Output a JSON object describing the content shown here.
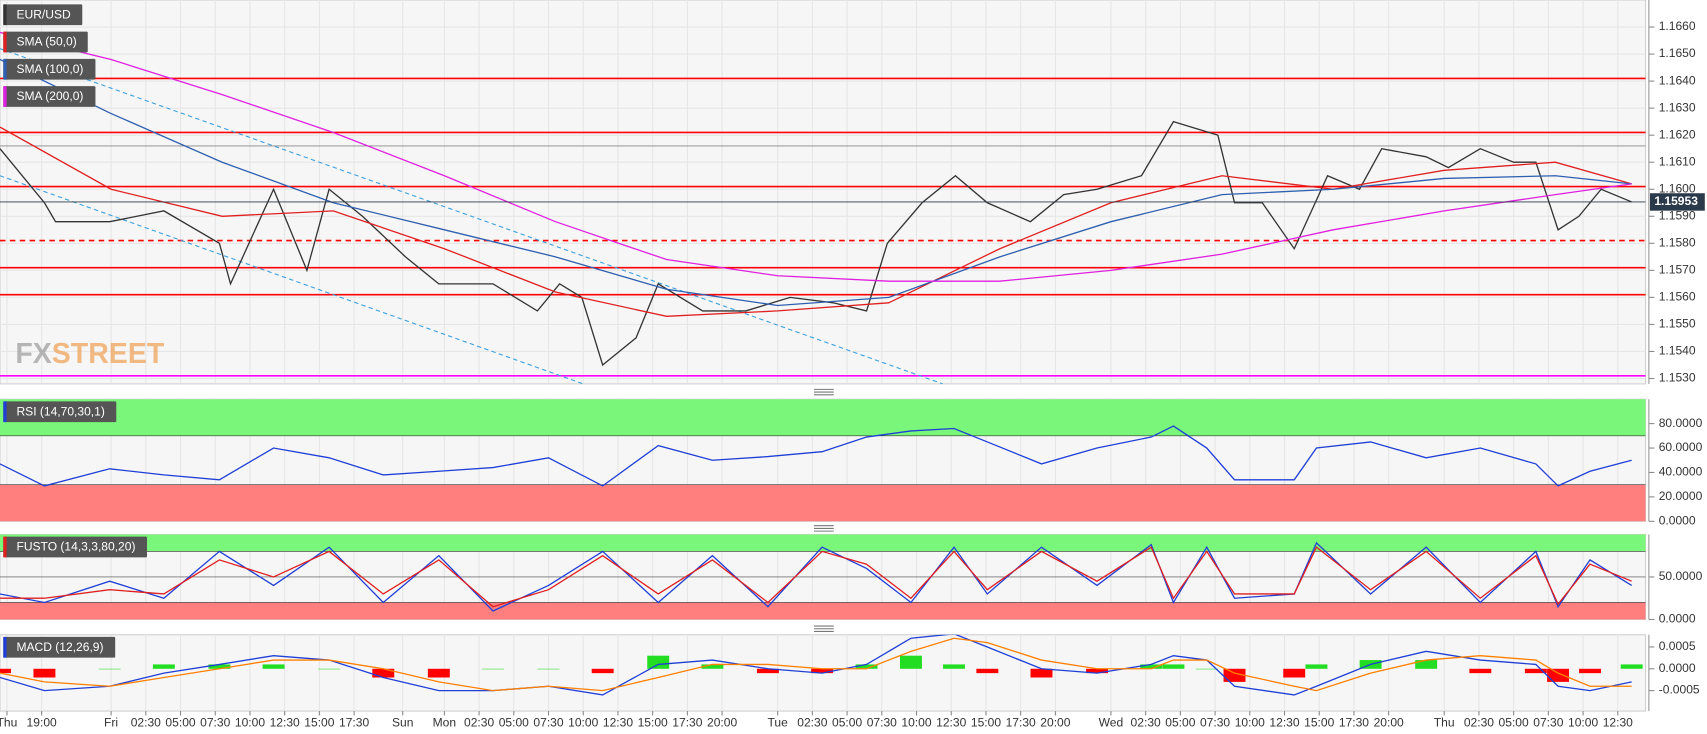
{
  "chart_data": [
    {
      "type": "line",
      "xlim": [
        0,
        118.5
      ],
      "ylim": [
        1.1528,
        1.167
      ],
      "grid": true,
      "yticks": [
        {
          "value": 1.153,
          "label": "1.1530"
        },
        {
          "value": 1.154,
          "label": "1.1540"
        },
        {
          "value": 1.155,
          "label": "1.1550"
        },
        {
          "value": 1.156,
          "label": "1.1560"
        },
        {
          "value": 1.157,
          "label": "1.1570"
        },
        {
          "value": 1.158,
          "label": "1.1580"
        },
        {
          "value": 1.159,
          "label": "1.1590"
        },
        {
          "value": 1.16,
          "label": "1.1600"
        },
        {
          "value": 1.161,
          "label": "1.1610"
        },
        {
          "value": 1.162,
          "label": "1.1620"
        },
        {
          "value": 1.163,
          "label": "1.1630"
        },
        {
          "value": 1.164,
          "label": "1.1640"
        },
        {
          "value": 1.165,
          "label": "1.1650"
        },
        {
          "value": 1.166,
          "label": "1.1660"
        }
      ],
      "series": [
        {
          "name": "EUR/USD",
          "color": "#333333",
          "x": [
            0,
            3.2,
            4,
            7.9,
            11.8,
            15.8,
            16.6,
            19.7,
            22.1,
            23.7,
            26.1,
            29.2,
            31.6,
            35.5,
            38.7,
            40.3,
            41.9,
            43.4,
            45.8,
            47.4,
            50.6,
            53.7,
            56.9,
            60,
            62.4,
            63.9,
            66.4,
            68.8,
            71.1,
            74.2,
            76.6,
            79,
            82.2,
            84.5,
            87.7,
            88.9,
            90.9,
            93.2,
            95.6,
            97.9,
            99.5,
            102.7,
            104.3,
            106.6,
            109,
            110.6,
            112.2,
            113.7,
            115.3,
            117.5
          ],
          "values": [
            1.1615,
            1.1595,
            1.1588,
            1.1588,
            1.1592,
            1.158,
            1.1565,
            1.16,
            1.157,
            1.16,
            1.159,
            1.1575,
            1.1565,
            1.1565,
            1.1555,
            1.1565,
            1.156,
            1.1535,
            1.1545,
            1.1565,
            1.1555,
            1.1555,
            1.156,
            1.1558,
            1.1555,
            1.158,
            1.1595,
            1.1605,
            1.1595,
            1.1588,
            1.1598,
            1.16,
            1.1605,
            1.1625,
            1.162,
            1.1595,
            1.1595,
            1.1578,
            1.1605,
            1.16,
            1.1615,
            1.1612,
            1.1608,
            1.1615,
            1.161,
            1.161,
            1.1585,
            1.159,
            1.16,
            1.15953
          ]
        },
        {
          "name": "SMA (50,0)",
          "color": "#e02020",
          "x": [
            0,
            8,
            16,
            24,
            32,
            40,
            48,
            56,
            64,
            72,
            80,
            88,
            96,
            104,
            112,
            117.5
          ],
          "values": [
            1.1623,
            1.16,
            1.159,
            1.1592,
            1.1578,
            1.1562,
            1.1553,
            1.1555,
            1.1558,
            1.1578,
            1.1595,
            1.1605,
            1.16,
            1.1607,
            1.161,
            1.1602
          ]
        },
        {
          "name": "SMA (100,0)",
          "color": "#2e5fb0",
          "x": [
            0,
            8,
            16,
            24,
            32,
            40,
            48,
            56,
            64,
            72,
            80,
            88,
            96,
            104,
            112,
            117.5
          ],
          "values": [
            1.1648,
            1.1628,
            1.161,
            1.1595,
            1.1585,
            1.1575,
            1.1563,
            1.1557,
            1.156,
            1.1575,
            1.1588,
            1.1598,
            1.16,
            1.1604,
            1.1605,
            1.1602
          ]
        },
        {
          "name": "SMA (200,0)",
          "color": "#e020e0",
          "x": [
            0,
            8,
            16,
            24,
            32,
            40,
            48,
            56,
            64,
            72,
            80,
            88,
            96,
            104,
            112,
            117.5
          ],
          "values": [
            1.1658,
            1.1648,
            1.1635,
            1.1621,
            1.1605,
            1.1588,
            1.1574,
            1.1568,
            1.1566,
            1.1566,
            1.157,
            1.1576,
            1.1585,
            1.1592,
            1.1598,
            1.1602
          ]
        }
      ],
      "levels": [
        {
          "value": 1.1641,
          "color": "#ff0000",
          "style": "solid"
        },
        {
          "value": 1.1621,
          "color": "#ff0000",
          "style": "solid"
        },
        {
          "value": 1.1601,
          "color": "#ff0000",
          "style": "solid"
        },
        {
          "value": 1.1581,
          "color": "#ff0000",
          "style": "dashed"
        },
        {
          "value": 1.1571,
          "color": "#ff0000",
          "style": "solid"
        },
        {
          "value": 1.1561,
          "color": "#ff0000",
          "style": "solid"
        },
        {
          "value": 1.1531,
          "color": "#ff00ff",
          "style": "solid"
        },
        {
          "value": 1.1616,
          "color": "#888888",
          "style": "thin"
        }
      ],
      "trendlines": [
        {
          "x": [
            0,
            67.9
          ],
          "values": [
            1.1652,
            1.1528
          ],
          "color": "#3aa0e0"
        },
        {
          "x": [
            0,
            42
          ],
          "values": [
            1.1605,
            1.1528
          ],
          "color": "#3aa0e0"
        }
      ],
      "last_price": 1.15953,
      "watermark": [
        "FX",
        "STREET"
      ]
    },
    {
      "type": "line",
      "xlim": [
        0,
        118.5
      ],
      "ylim": [
        0,
        100
      ],
      "yticks": [
        {
          "value": 0,
          "label": "0.0000"
        },
        {
          "value": 20,
          "label": "20.0000"
        },
        {
          "value": 40,
          "label": "40.0000"
        },
        {
          "value": 60,
          "label": "60.0000"
        },
        {
          "value": 80,
          "label": "80.0000"
        }
      ],
      "bands": [
        {
          "from": 70,
          "to": 100,
          "color": "#7af77a"
        },
        {
          "from": 0,
          "to": 30,
          "color": "#ff7f7f"
        }
      ],
      "x": [
        0,
        3.2,
        7.9,
        11.8,
        15.8,
        19.7,
        23.7,
        27.6,
        31.6,
        35.5,
        39.5,
        43.4,
        47.4,
        51.3,
        55.3,
        59.2,
        62.4,
        65.6,
        68.7,
        71.1,
        75,
        79,
        82.9,
        84.5,
        86.9,
        88.9,
        93.2,
        94.8,
        98.7,
        102.7,
        106.6,
        110.6,
        112.2,
        114.5,
        117.5
      ],
      "series": [
        {
          "name": "RSI (14,70,30,1)",
          "color": "#1f3fd6",
          "values": [
            47,
            29,
            43,
            38,
            34,
            60,
            52,
            38,
            41,
            44,
            52,
            29,
            62,
            50,
            53,
            57,
            69,
            74,
            76,
            65,
            47,
            60,
            69,
            78,
            60,
            34,
            34,
            60,
            65,
            52,
            60,
            47,
            29,
            41,
            50
          ]
        }
      ]
    },
    {
      "type": "line",
      "title": "FUSTO (14,3,3,80,20)",
      "xlim": [
        0,
        118.5
      ],
      "ylim": [
        0,
        100
      ],
      "yticks": [
        {
          "value": 0,
          "label": "0.0000"
        },
        {
          "value": 50,
          "label": "50.0000"
        }
      ],
      "bands": [
        {
          "from": 80,
          "to": 100,
          "color": "#7af77a"
        },
        {
          "from": 0,
          "to": 20,
          "color": "#ff7f7f"
        }
      ],
      "x": [
        0,
        3.2,
        7.9,
        11.8,
        15.8,
        19.7,
        23.7,
        27.6,
        31.6,
        35.5,
        39.5,
        43.4,
        47.4,
        51.3,
        55.3,
        59.2,
        62.4,
        65.6,
        68.7,
        71.1,
        75,
        79,
        82.9,
        84.5,
        86.9,
        88.9,
        93.2,
        94.8,
        98.7,
        102.7,
        106.6,
        110.6,
        112.2,
        114.5,
        117.5
      ],
      "series": [
        {
          "color": "#1f3fd6",
          "values": [
            30,
            20,
            45,
            25,
            80,
            40,
            85,
            20,
            75,
            10,
            40,
            80,
            20,
            75,
            15,
            85,
            60,
            20,
            85,
            30,
            85,
            40,
            88,
            20,
            85,
            25,
            30,
            90,
            30,
            85,
            20,
            80,
            15,
            70,
            40
          ]
        },
        {
          "color": "#e02020",
          "values": [
            25,
            25,
            35,
            30,
            70,
            50,
            80,
            30,
            70,
            15,
            35,
            75,
            30,
            70,
            20,
            80,
            65,
            25,
            80,
            35,
            80,
            45,
            85,
            25,
            80,
            30,
            30,
            85,
            35,
            80,
            25,
            75,
            18,
            65,
            45
          ]
        }
      ]
    },
    {
      "type": "bar",
      "title": "MACD (12,26,9)",
      "xlim": [
        0,
        118.5
      ],
      "ylim": [
        -0.00097,
        0.00078
      ],
      "yticks": [
        {
          "value": -0.0005,
          "label": "-0.0005"
        },
        {
          "value": 0,
          "label": "0.0000"
        },
        {
          "value": 0.0005,
          "label": "0.0005"
        }
      ],
      "x": [
        0,
        3.2,
        7.9,
        11.8,
        15.8,
        19.7,
        23.7,
        27.6,
        31.6,
        35.5,
        39.5,
        43.4,
        47.4,
        51.3,
        55.3,
        59.2,
        62.4,
        65.6,
        68.7,
        71.1,
        75,
        79,
        82.9,
        84.5,
        86.9,
        88.9,
        93.2,
        94.8,
        98.7,
        102.7,
        106.6,
        110.6,
        112.2,
        114.5,
        117.5
      ],
      "histogram": [
        -0.0001,
        -0.0002,
        0,
        0.0001,
        0.0001,
        0.0001,
        0,
        -0.0002,
        -0.0002,
        0,
        0,
        -0.0001,
        0.0003,
        0.0001,
        -0.0001,
        -0.0001,
        0.0001,
        0.0003,
        0.0001,
        -0.0001,
        -0.0002,
        -0.0001,
        0.0001,
        0.0001,
        0,
        -0.0003,
        -0.0002,
        0.0001,
        0.0002,
        0.0002,
        -0.0001,
        -0.0001,
        -0.0003,
        -0.0001,
        0.0001
      ],
      "up_color": "#22dd22",
      "down_color": "#ff0000",
      "series": [
        {
          "color": "#1f3fd6",
          "values": [
            -0.0002,
            -0.0005,
            -0.0004,
            -0.0001,
            0.0001,
            0.0003,
            0.0002,
            -0.0002,
            -0.0005,
            -0.0005,
            -0.0004,
            -0.0006,
            0.0001,
            0.0002,
            0,
            -0.0001,
            0.0001,
            0.0007,
            0.0008,
            0.0005,
            0,
            -0.0001,
            0.0001,
            0.0003,
            0.0002,
            -0.0004,
            -0.0006,
            -0.0004,
            0.0001,
            0.0004,
            0.0002,
            0.0001,
            -0.0004,
            -0.0005,
            -0.0003
          ]
        },
        {
          "color": "#ff8000",
          "values": [
            -0.0001,
            -0.0003,
            -0.0004,
            -0.0002,
            0,
            0.0002,
            0.0002,
            0,
            -0.0003,
            -0.0005,
            -0.0004,
            -0.0005,
            -0.0002,
            0.0001,
            0.0001,
            0,
            0,
            0.0004,
            0.0007,
            0.0006,
            0.0002,
            0,
            0,
            0.0002,
            0.0002,
            -0.0001,
            -0.0004,
            -0.0005,
            -0.0001,
            0.0002,
            0.0003,
            0.0002,
            -0.0001,
            -0.0004,
            -0.0004
          ]
        }
      ],
      "xticks": [
        {
          "value": 0.5,
          "label": "Thu"
        },
        {
          "value": 3,
          "label": "19:00"
        },
        {
          "value": 8,
          "label": "Fri"
        },
        {
          "value": 10.5,
          "label": "02:30"
        },
        {
          "value": 13,
          "label": "05:00"
        },
        {
          "value": 15.5,
          "label": "07:30"
        },
        {
          "value": 18,
          "label": "10:00"
        },
        {
          "value": 20.5,
          "label": "12:30"
        },
        {
          "value": 23,
          "label": "15:00"
        },
        {
          "value": 25.5,
          "label": "17:30"
        },
        {
          "value": 29,
          "label": "Sun"
        },
        {
          "value": 32,
          "label": "Mon"
        },
        {
          "value": 34.5,
          "label": "02:30"
        },
        {
          "value": 37,
          "label": "05:00"
        },
        {
          "value": 39.5,
          "label": "07:30"
        },
        {
          "value": 42,
          "label": "10:00"
        },
        {
          "value": 44.5,
          "label": "12:30"
        },
        {
          "value": 47,
          "label": "15:00"
        },
        {
          "value": 49.5,
          "label": "17:30"
        },
        {
          "value": 52,
          "label": "20:00"
        },
        {
          "value": 56,
          "label": "Tue"
        },
        {
          "value": 58.5,
          "label": "02:30"
        },
        {
          "value": 61,
          "label": "05:00"
        },
        {
          "value": 63.5,
          "label": "07:30"
        },
        {
          "value": 66,
          "label": "10:00"
        },
        {
          "value": 68.5,
          "label": "12:30"
        },
        {
          "value": 71,
          "label": "15:00"
        },
        {
          "value": 73.5,
          "label": "17:30"
        },
        {
          "value": 76,
          "label": "20:00"
        },
        {
          "value": 80,
          "label": "Wed"
        },
        {
          "value": 82.5,
          "label": "02:30"
        },
        {
          "value": 85,
          "label": "05:00"
        },
        {
          "value": 87.5,
          "label": "07:30"
        },
        {
          "value": 90,
          "label": "10:00"
        },
        {
          "value": 92.5,
          "label": "12:30"
        },
        {
          "value": 95,
          "label": "15:00"
        },
        {
          "value": 97.5,
          "label": "17:30"
        },
        {
          "value": 100,
          "label": "20:00"
        },
        {
          "value": 104,
          "label": "Thu"
        },
        {
          "value": 106.5,
          "label": "02:30"
        },
        {
          "value": 109,
          "label": "05:00"
        },
        {
          "value": 111.5,
          "label": "07:30"
        },
        {
          "value": 114,
          "label": "10:00"
        },
        {
          "value": 116.5,
          "label": "12:30"
        }
      ]
    }
  ]
}
